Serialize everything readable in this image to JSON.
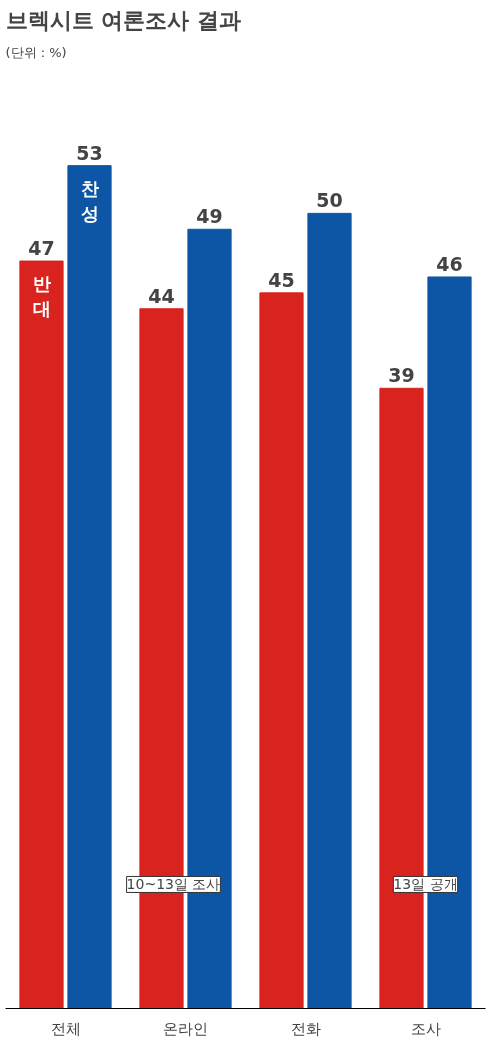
{
  "chart_data": {
    "type": "bar",
    "title": "브렉시트 여론조사 결과",
    "subtitle": "(단위 : %)",
    "categories": [
      "전체",
      "온라인",
      "전화",
      "조사"
    ],
    "series": [
      {
        "name": "반대",
        "color": "#d9231f",
        "values": [
          47,
          44,
          45,
          39
        ]
      },
      {
        "name": "찬성",
        "color": "#0d56a6",
        "values": [
          53,
          49,
          50,
          46
        ]
      }
    ],
    "data_labels": true,
    "legend": false,
    "grid": false,
    "annotations": [
      "10~13일 조사",
      "13일 공개"
    ]
  }
}
